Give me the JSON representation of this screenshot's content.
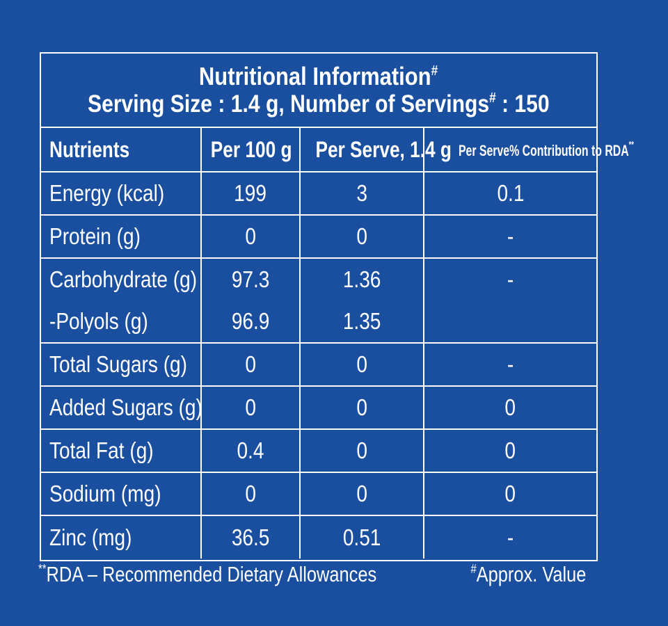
{
  "title": {
    "line1": "Nutritional Information",
    "line1_mark": "#",
    "line2_a": "Serving Size : 1.4 g, Number of Servings",
    "line2_mark": "#",
    "line2_b": " : 150"
  },
  "table": {
    "headers": {
      "nutrients": "Nutrients",
      "per100": "Per 100 g",
      "perServe": "Per Serve, 1.4 g",
      "rda": "Per Serve% Contribution to RDA",
      "rda_mark": "**"
    },
    "rows": [
      {
        "name": "Energy (kcal)",
        "per100": "199",
        "perServe": "3",
        "rda": "0.1"
      },
      {
        "name": "Protein (g)",
        "per100": "0",
        "perServe": "0",
        "rda": "-"
      },
      {
        "name": "Carbohydrate (g)",
        "per100": "97.3",
        "perServe": "1.36",
        "rda": "-",
        "sub_name": "-Polyols (g)",
        "sub_per100": "96.9",
        "sub_perServe": "1.35"
      },
      {
        "name": "Total Sugars (g)",
        "per100": "0",
        "perServe": "0",
        "rda": "-"
      },
      {
        "name": "Added Sugars (g)",
        "per100": "0",
        "perServe": "0",
        "rda": "0"
      },
      {
        "name": "Total Fat (g)",
        "per100": "0.4",
        "perServe": "0",
        "rda": "0"
      },
      {
        "name": "Sodium (mg)",
        "per100": "0",
        "perServe": "0",
        "rda": "0"
      },
      {
        "name": "Zinc (mg)",
        "per100": "36.5",
        "perServe": "0.51",
        "rda": "-"
      }
    ]
  },
  "footer": {
    "left_mark": "**",
    "left": "RDA – Recommended Dietary Allowances",
    "right_mark": "#",
    "right": "Approx. Value"
  },
  "colors": {
    "background": "#1a4fa0",
    "text": "#ffffff",
    "border": "#ffffff"
  }
}
